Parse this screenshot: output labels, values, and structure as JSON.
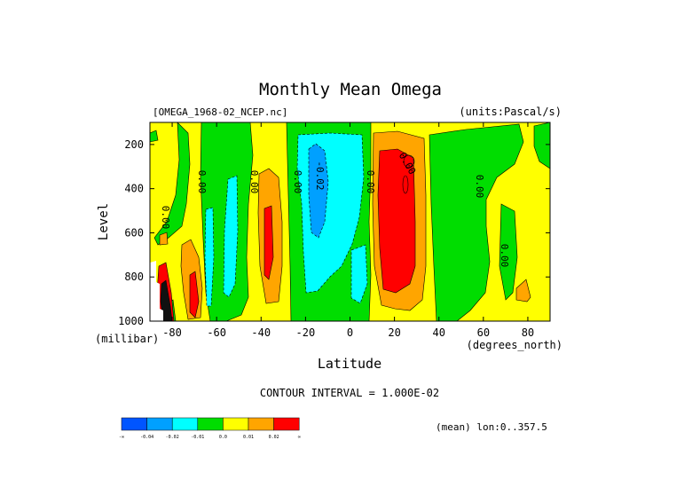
{
  "chart_data": {
    "type": "heatmap",
    "title": "Monthly Mean Omega",
    "file_label": "[OMEGA_1968-02_NCEP.nc]",
    "units_label": "(units:Pascal/s)",
    "xlabel": "Latitude",
    "x_units": "(degrees_north)",
    "ylabel": "Level",
    "y_units": "(millibar)",
    "xlim": [
      -90,
      90
    ],
    "ylim": [
      1000,
      100
    ],
    "x_ticks": [
      -80,
      -60,
      -40,
      -20,
      0,
      20,
      40,
      60,
      80
    ],
    "y_ticks": [
      200,
      400,
      600,
      800,
      1000
    ],
    "contour_interval_label": "CONTOUR INTERVAL = 1.000E-02",
    "mean_label": "(mean) lon:0..357.5",
    "contour_labels": [
      "0.00",
      "0.00",
      "0.00",
      "0.00",
      "-0.02",
      "0.00",
      "0.00",
      "0.00",
      "0.00"
    ],
    "colors": {
      "c1": "#0055ff",
      "c2": "#00a0ff",
      "c3": "#00ffff",
      "c4": "#00dd00",
      "c5": "#ffff00",
      "c6": "#ffa500",
      "c7": "#ff0000",
      "c8": "#111111",
      "white": "#ffffff"
    },
    "legend": [
      {
        "color": "#0055ff",
        "label": "-∞"
      },
      {
        "color": "#00a0ff",
        "label": "-0.04"
      },
      {
        "color": "#00ffff",
        "label": "-0.02"
      },
      {
        "color": "#00dd00",
        "label": "-0.01"
      },
      {
        "color": "#ffff00",
        "label": "0.0"
      },
      {
        "color": "#ffa500",
        "label": "0.01"
      },
      {
        "color": "#ff0000",
        "label": "0.02"
      }
    ],
    "legend_end_label": "∞"
  }
}
